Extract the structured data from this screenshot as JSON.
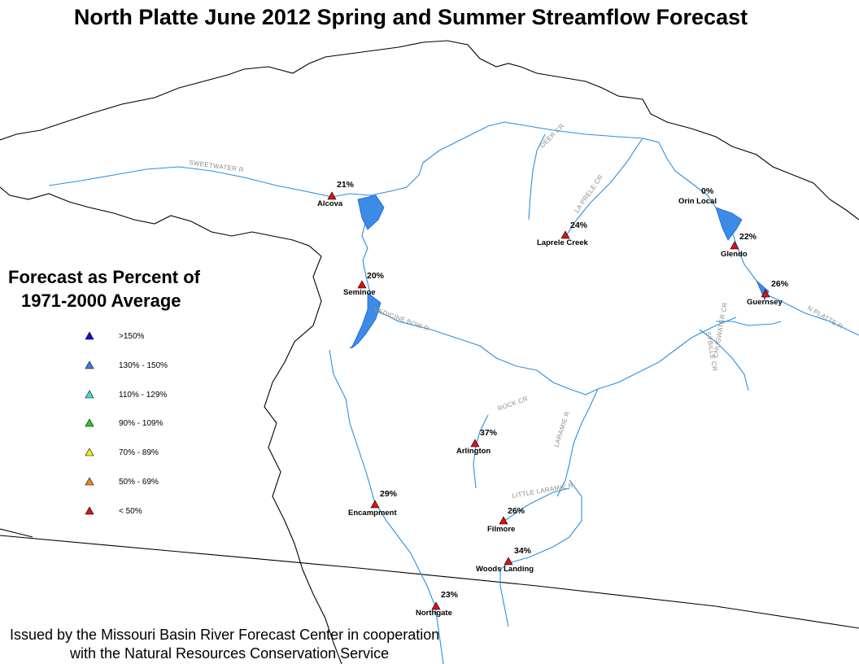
{
  "title": "North Platte June 2012 Spring and Summer Streamflow Forecast",
  "legend": {
    "title_line1": "Forecast as Percent of",
    "title_line2": "1971-2000 Average",
    "items": [
      {
        "label": ">150%",
        "color": "#1010d8"
      },
      {
        "label": "130% - 150%",
        "color": "#3b7fe0"
      },
      {
        "label": "110% - 129%",
        "color": "#3ee0d8"
      },
      {
        "label": "90% - 109%",
        "color": "#22cc22"
      },
      {
        "label": "70% - 89%",
        "color": "#f0f020"
      },
      {
        "label": "50% - 69%",
        "color": "#e88a18"
      },
      {
        "label": "< 50%",
        "color": "#dd1111"
      }
    ]
  },
  "stations": [
    {
      "name": "Alcova",
      "percent": "21%"
    },
    {
      "name": "Seminoe",
      "percent": "20%"
    },
    {
      "name": "Laprele Creek",
      "percent": "24%"
    },
    {
      "name": "Orin Local",
      "percent": "0%"
    },
    {
      "name": "Glendo",
      "percent": "22%"
    },
    {
      "name": "Guernsey",
      "percent": "26%"
    },
    {
      "name": "Arlington",
      "percent": "37%"
    },
    {
      "name": "Encampment",
      "percent": "29%"
    },
    {
      "name": "Filmore",
      "percent": "26%"
    },
    {
      "name": "Woods Landing",
      "percent": "34%"
    },
    {
      "name": "Northgate",
      "percent": "23%"
    }
  ],
  "rivers": {
    "sweetwater": "SWEETWATER R",
    "deer": "DEER CR",
    "laprele": "LA PRELE CR",
    "medicine_bow": "MEDICINE BOW R",
    "n_platte": "N PLATTE R",
    "sybille": "SYBILLE CR",
    "chugwater": "CHUGWATER CR",
    "rock": "ROCK CR",
    "laramie": "LARAMIE R",
    "little_laramie": "LITTLE LARAMIE R"
  },
  "footer": {
    "line1": "Issued by the Missouri Basin River Forecast Center in cooperation",
    "line2": "with the Natural Resources Conservation Service"
  }
}
